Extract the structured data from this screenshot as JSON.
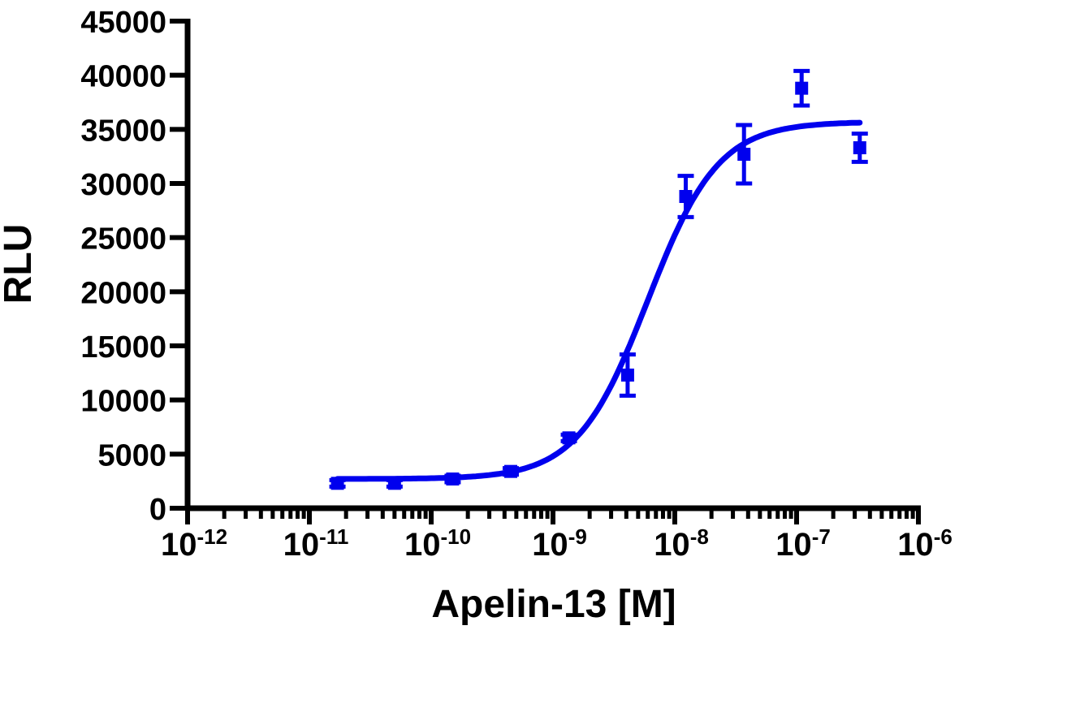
{
  "chart_data": {
    "type": "scatter",
    "title": "",
    "xlabel": "Apelin-13 [M]",
    "ylabel": "RLU",
    "xscale": "log",
    "xlim": [
      1e-12,
      1e-06
    ],
    "ylim": [
      0,
      45000
    ],
    "grid": false,
    "x_tick_labels": [
      {
        "base": "10",
        "exp": "-12",
        "value": 1e-12
      },
      {
        "base": "10",
        "exp": "-11",
        "value": 1e-11
      },
      {
        "base": "10",
        "exp": "-10",
        "value": 1e-10
      },
      {
        "base": "10",
        "exp": "-9",
        "value": 1e-09
      },
      {
        "base": "10",
        "exp": "-8",
        "value": 1e-08
      },
      {
        "base": "10",
        "exp": "-7",
        "value": 1e-07
      },
      {
        "base": "10",
        "exp": "-6",
        "value": 1e-06
      }
    ],
    "y_tick_labels": [
      "0",
      "5000",
      "10000",
      "15000",
      "20000",
      "25000",
      "30000",
      "35000",
      "40000",
      "45000"
    ],
    "y_ticks": [
      0,
      5000,
      10000,
      15000,
      20000,
      25000,
      30000,
      35000,
      40000,
      45000
    ],
    "series": [
      {
        "color": "#0000ee",
        "marker": "square",
        "points": [
          {
            "x": 1.7e-11,
            "y": 2300,
            "err": 300
          },
          {
            "x": 5e-11,
            "y": 2300,
            "err": 300
          },
          {
            "x": 1.5e-10,
            "y": 2700,
            "err": 300
          },
          {
            "x": 4.5e-10,
            "y": 3400,
            "err": 300
          },
          {
            "x": 1.35e-09,
            "y": 6500,
            "err": 300
          },
          {
            "x": 4.1e-09,
            "y": 12300,
            "err": 1900
          },
          {
            "x": 1.23e-08,
            "y": 28800,
            "err": 1900
          },
          {
            "x": 3.7e-08,
            "y": 32700,
            "err": 2700
          },
          {
            "x": 1.1e-07,
            "y": 38800,
            "err": 1600
          },
          {
            "x": 3.3e-07,
            "y": 33300,
            "err": 1300
          }
        ],
        "fit": {
          "model": "sigmoidal dose-response",
          "bottom": 2700,
          "top": 35700,
          "ec50": 6e-09,
          "hill": 1.5,
          "x_range": [
            1.7e-11,
            3.3e-07
          ]
        }
      }
    ]
  }
}
